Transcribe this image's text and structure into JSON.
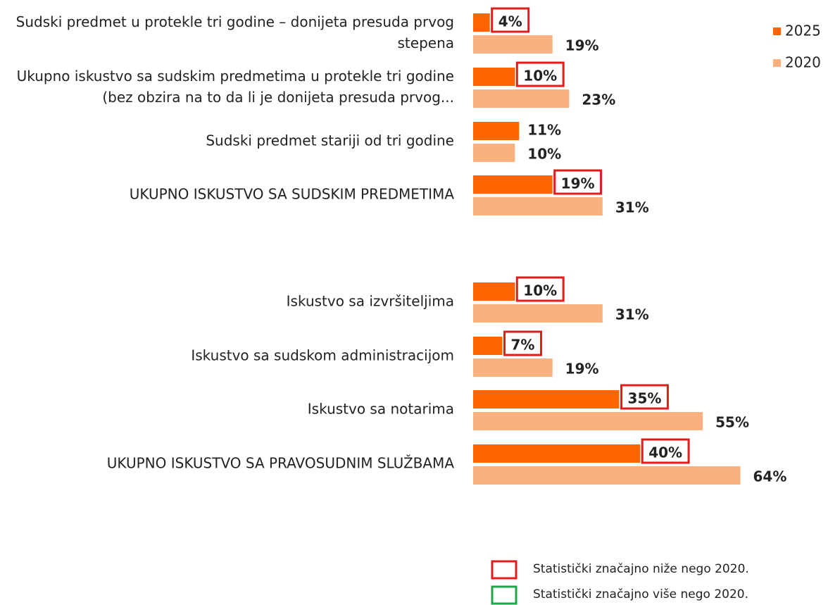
{
  "chart_data": {
    "type": "bar",
    "orientation": "horizontal",
    "categories": [
      "Sudski predmet u protekle tri godine – donijeta presuda prvog stepena",
      "Ukupno iskustvo sa sudskim predmetima u protekle tri godine (bez obzira na to da li je donijeta presuda prvog...",
      "Sudski predmet stariji od tri godine",
      "UKUPNO ISKUSTVO SA SUDSKIM PREDMETIMA",
      "Iskustvo sa izvršiteljima",
      "Iskustvo sa sudskom administracijom",
      "Iskustvo sa notarima",
      "UKUPNO ISKUSTVO SA PRAVOSUDNIM SLUŽBAMA"
    ],
    "series": [
      {
        "name": "2025",
        "color": "#ff6600",
        "values": [
          4,
          10,
          11,
          19,
          10,
          7,
          35,
          40
        ],
        "value_labels": [
          "4%",
          "10%",
          "11%",
          "19%",
          "10%",
          "7%",
          "35%",
          "40%"
        ]
      },
      {
        "name": "2020",
        "color": "#fbb07f",
        "values": [
          19,
          23,
          10,
          31,
          31,
          19,
          55,
          64
        ],
        "value_labels": [
          "19%",
          "23%",
          "10%",
          "31%",
          "31%",
          "19%",
          "55%",
          "64%"
        ]
      }
    ],
    "highlight": [
      0,
      0,
      null,
      0,
      0,
      0,
      0,
      0
    ],
    "notes": [
      {
        "text": "Statistički značajno niže nego 2020.",
        "color": "#e41b1b"
      },
      {
        "text": "Statistički značajno više nego 2020.",
        "color": "#1fa64a"
      }
    ]
  }
}
